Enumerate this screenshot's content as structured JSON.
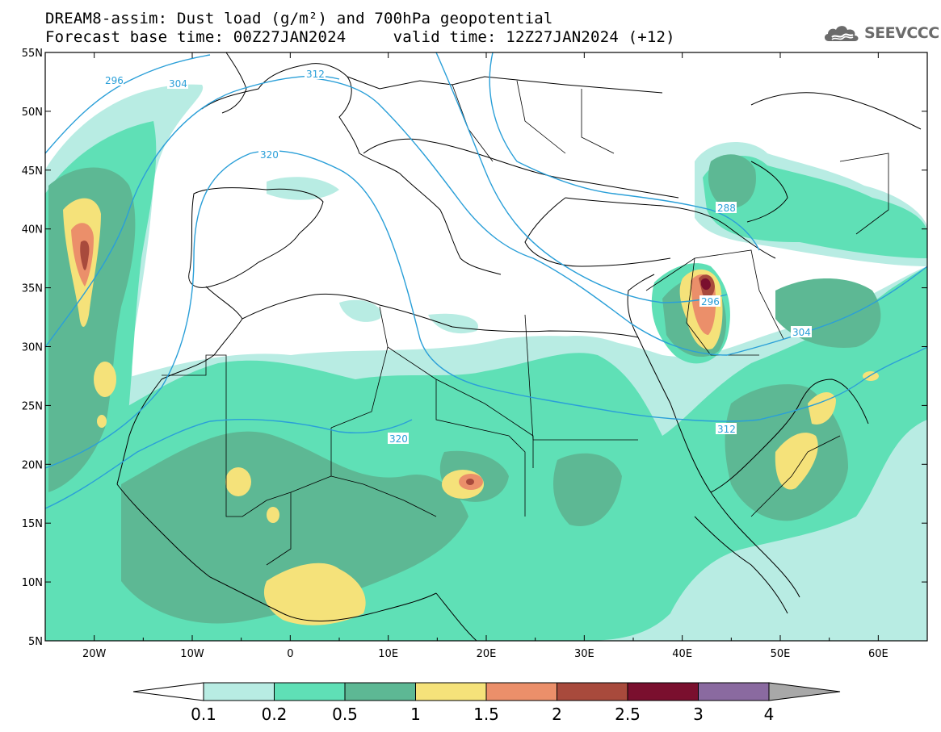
{
  "title": {
    "line1": "DREAM8-assim: Dust load (g/m²) and 700hPa geopotential",
    "line2": "Forecast base time: 00Z27JAN2024     valid time: 12Z27JAN2024 (+12)"
  },
  "logo": {
    "text": "SEEVCCC",
    "icon": "cloud-icon"
  },
  "map": {
    "lon_range": [
      -25,
      65
    ],
    "lat_range": [
      5,
      55
    ],
    "lon_ticks": [
      "20W",
      "10W",
      "0",
      "10E",
      "20E",
      "30E",
      "40E",
      "50E",
      "60E"
    ],
    "lat_ticks": [
      "55N",
      "50N",
      "45N",
      "40N",
      "35N",
      "30N",
      "25N",
      "20N",
      "15N",
      "10N",
      "5N"
    ],
    "contour_color": "#2a9fd8",
    "contour_labels": [
      "296",
      "304",
      "312",
      "320",
      "288",
      "296",
      "304",
      "312",
      "320"
    ]
  },
  "colorbar": {
    "ticks": [
      "0.1",
      "0.2",
      "0.5",
      "1",
      "1.5",
      "2",
      "2.5",
      "3",
      "4"
    ],
    "colors": [
      "#ffffff",
      "#b8ece3",
      "#5fe0b6",
      "#5db894",
      "#f5e27a",
      "#eb8f6a",
      "#a84a3c",
      "#7a0f2e",
      "#8a6aa0",
      "#a8a8a8"
    ]
  }
}
